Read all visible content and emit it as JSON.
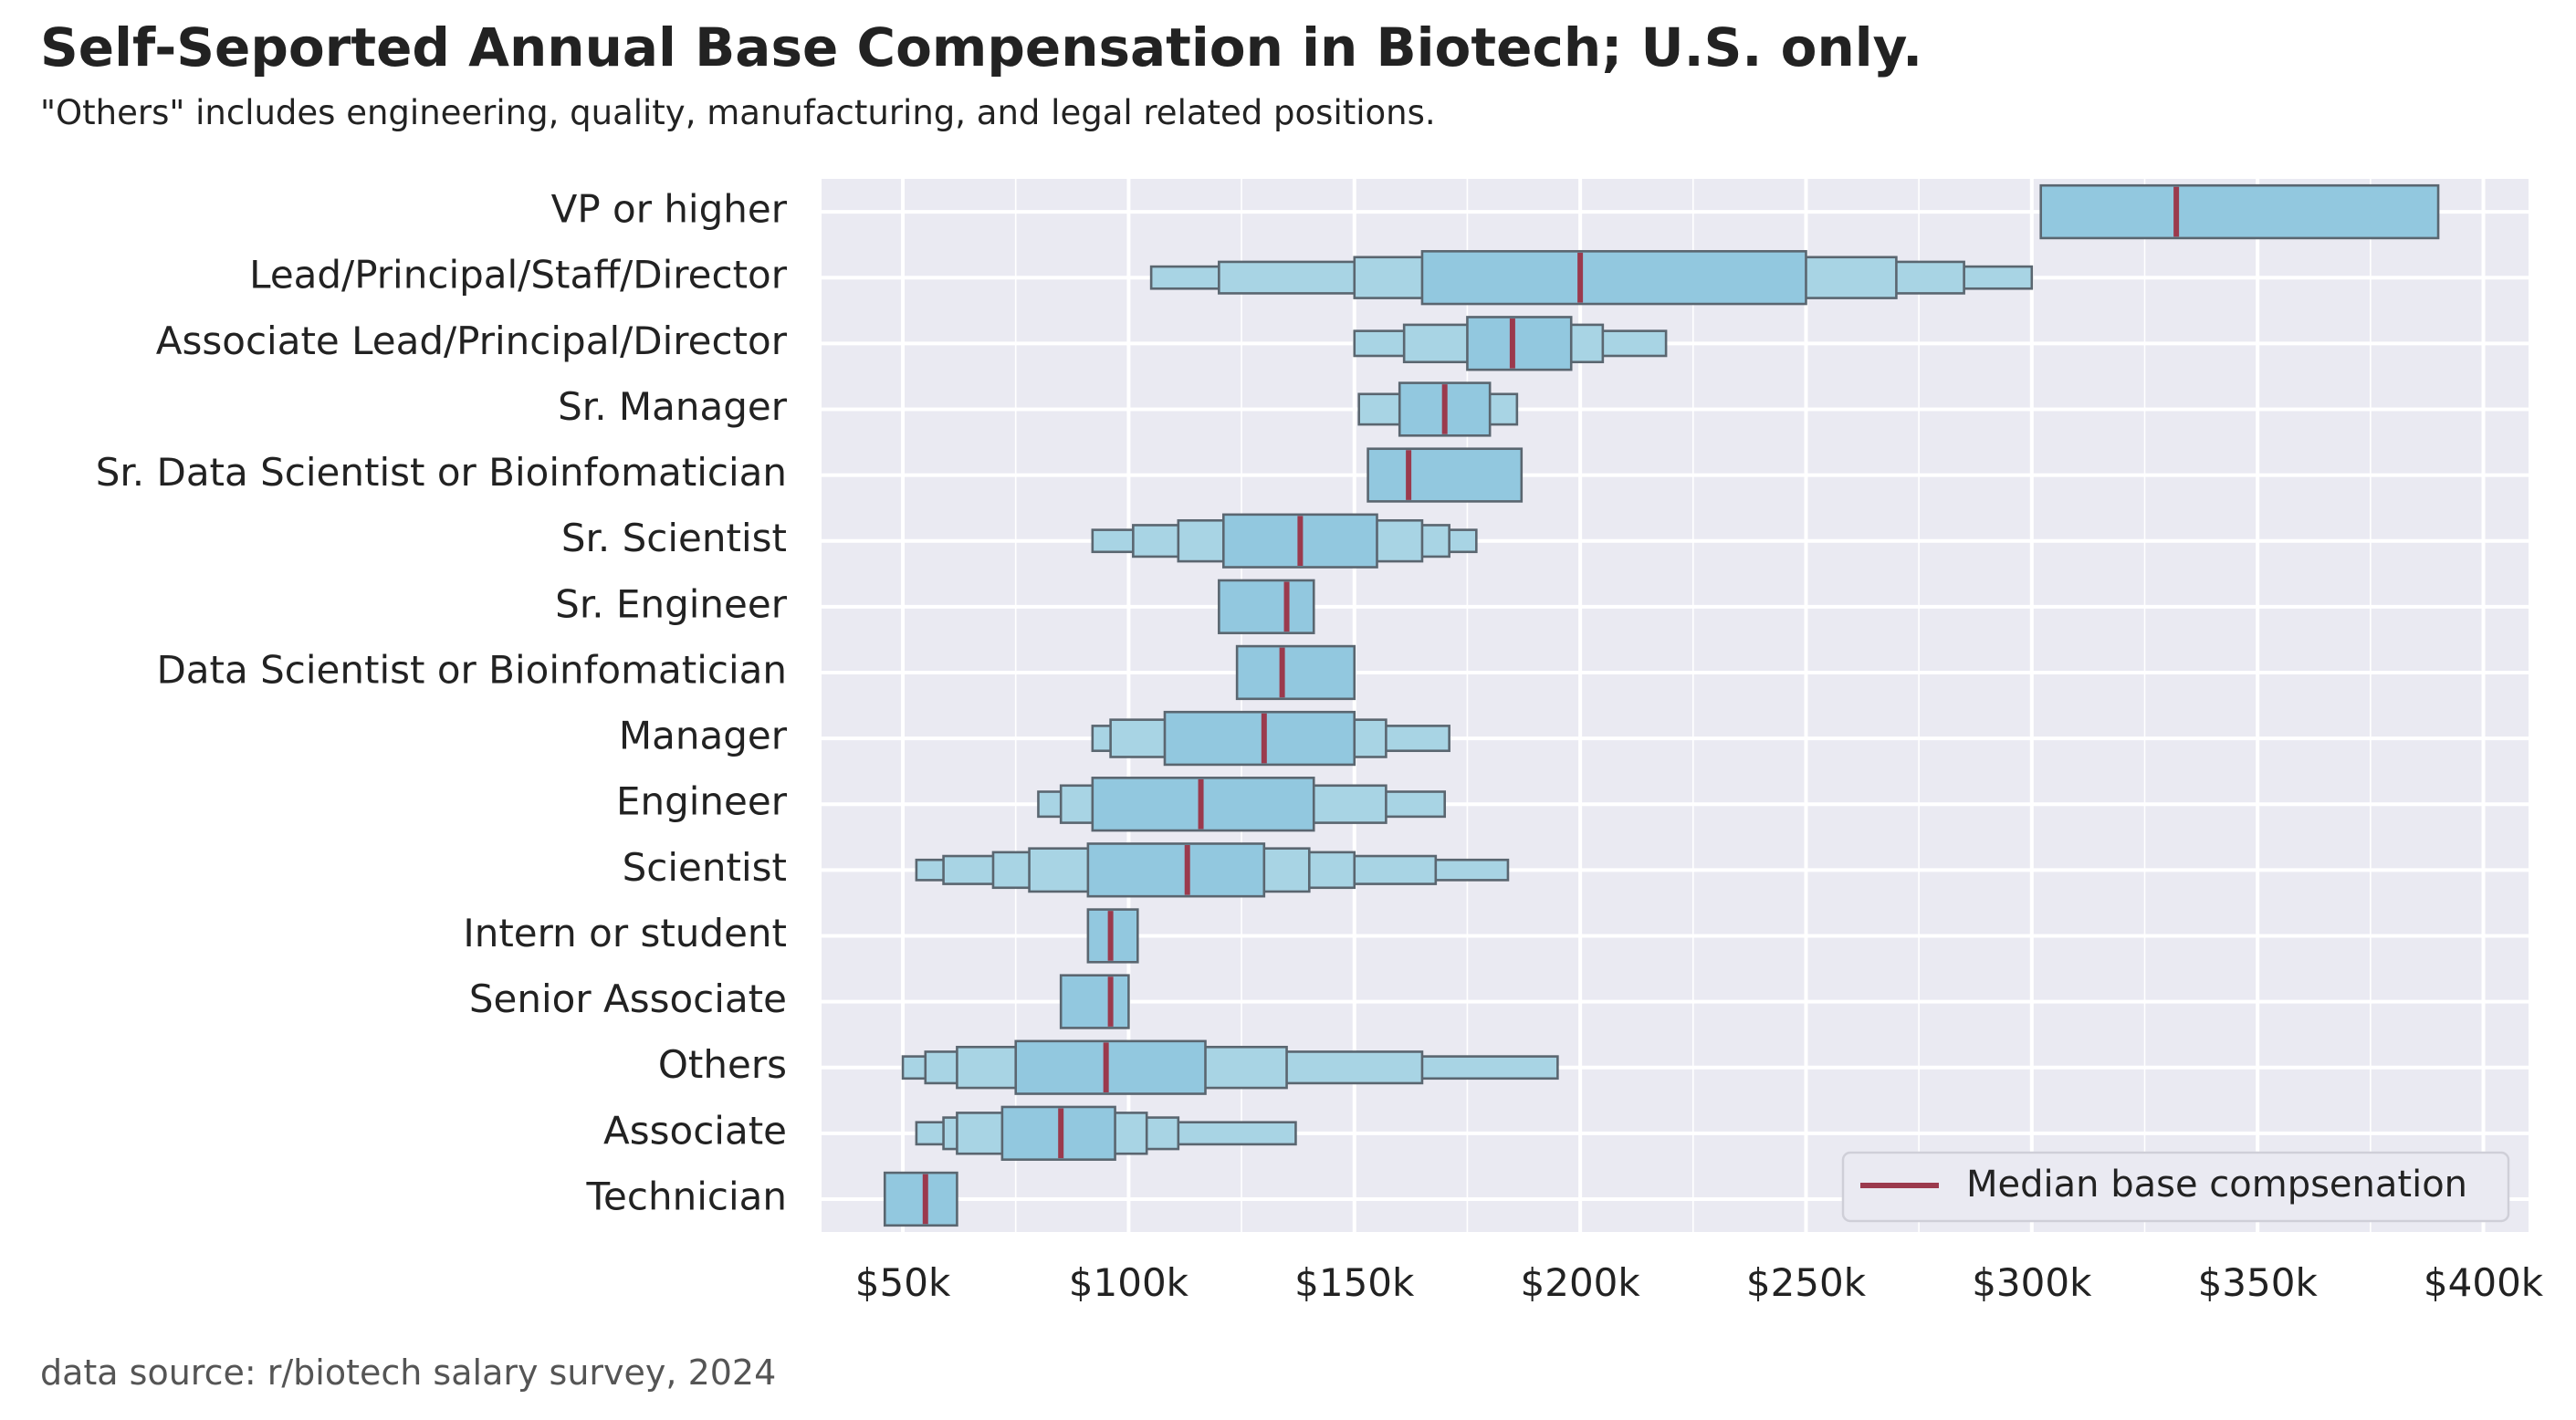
{
  "chart_data": {
    "type": "boxen",
    "title": "Self-Seported Annual Base Compensation in Biotech; U.S. only.",
    "subtitle": "\"Others\" includes engineering, quality, manufacturing, and legal related positions.",
    "source": "data source: r/biotech salary survey, 2024",
    "xlabel": "",
    "ylabel": "",
    "xlim": [
      32000,
      410000
    ],
    "grid": true,
    "x_ticks": [
      {
        "value": 50000,
        "label": "$50k"
      },
      {
        "value": 100000,
        "label": "$100k"
      },
      {
        "value": 150000,
        "label": "$150k"
      },
      {
        "value": 200000,
        "label": "$200k"
      },
      {
        "value": 250000,
        "label": "$250k"
      },
      {
        "value": 300000,
        "label": "$300k"
      },
      {
        "value": 350000,
        "label": "$350k"
      },
      {
        "value": 400000,
        "label": "$400k"
      }
    ],
    "legend": {
      "label": "Median base compsenation",
      "position": "lower-right"
    },
    "colors": {
      "box_fill": "#92c8df",
      "box_edge": "#5a6670",
      "median": "#9b3a4d",
      "plot_bg": "#eaeaf2",
      "grid": "#ffffff"
    },
    "series": [
      {
        "name": "VP or higher",
        "median": 332000,
        "boxes": [
          [
            302000,
            390000
          ]
        ]
      },
      {
        "name": "Lead/Principal/Staff/Director",
        "median": 200000,
        "boxes": [
          [
            165000,
            250000
          ],
          [
            150000,
            270000
          ],
          [
            120000,
            285000
          ],
          [
            105000,
            300000
          ]
        ]
      },
      {
        "name": "Associate Lead/Principal/Director",
        "median": 185000,
        "boxes": [
          [
            175000,
            198000
          ],
          [
            161000,
            205000
          ],
          [
            150000,
            219000
          ]
        ]
      },
      {
        "name": "Sr. Manager",
        "median": 170000,
        "boxes": [
          [
            160000,
            180000
          ],
          [
            151000,
            186000
          ]
        ]
      },
      {
        "name": "Sr. Data Scientist or Bioinfomatician",
        "median": 162000,
        "boxes": [
          [
            153000,
            187000
          ]
        ]
      },
      {
        "name": "Sr. Scientist",
        "median": 138000,
        "boxes": [
          [
            121000,
            155000
          ],
          [
            111000,
            165000
          ],
          [
            101000,
            171000
          ],
          [
            92000,
            177000
          ]
        ]
      },
      {
        "name": "Sr. Engineer",
        "median": 135000,
        "boxes": [
          [
            120000,
            141000
          ]
        ]
      },
      {
        "name": "Data Scientist or Bioinfomatician",
        "median": 134000,
        "boxes": [
          [
            124000,
            150000
          ]
        ]
      },
      {
        "name": "Manager",
        "median": 130000,
        "boxes": [
          [
            108000,
            150000
          ],
          [
            96000,
            157000
          ],
          [
            92000,
            171000
          ]
        ]
      },
      {
        "name": "Engineer",
        "median": 116000,
        "boxes": [
          [
            92000,
            141000
          ],
          [
            85000,
            157000
          ],
          [
            80000,
            170000
          ]
        ]
      },
      {
        "name": "Scientist",
        "median": 113000,
        "boxes": [
          [
            91000,
            130000
          ],
          [
            78000,
            140000
          ],
          [
            70000,
            150000
          ],
          [
            59000,
            168000
          ],
          [
            53000,
            184000
          ]
        ]
      },
      {
        "name": "Intern or student",
        "median": 96000,
        "boxes": [
          [
            91000,
            102000
          ]
        ]
      },
      {
        "name": "Senior Associate",
        "median": 96000,
        "boxes": [
          [
            85000,
            100000
          ]
        ]
      },
      {
        "name": "Others",
        "median": 95000,
        "boxes": [
          [
            75000,
            117000
          ],
          [
            62000,
            135000
          ],
          [
            55000,
            165000
          ],
          [
            50000,
            195000
          ]
        ]
      },
      {
        "name": "Associate",
        "median": 85000,
        "boxes": [
          [
            72000,
            97000
          ],
          [
            62000,
            104000
          ],
          [
            59000,
            111000
          ],
          [
            53000,
            137000
          ]
        ]
      },
      {
        "name": "Technician",
        "median": 55000,
        "boxes": [
          [
            46000,
            62000
          ]
        ]
      }
    ]
  }
}
